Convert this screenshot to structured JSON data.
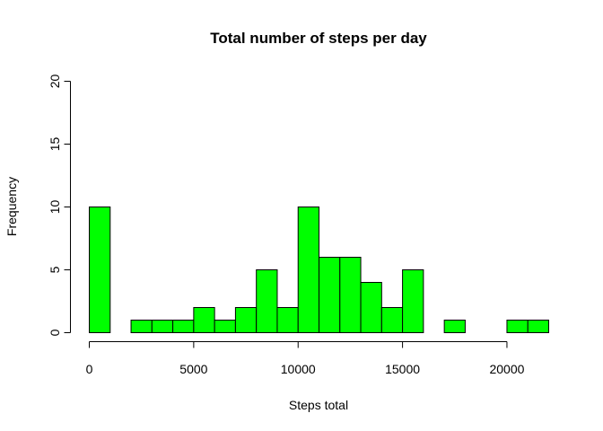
{
  "chart_data": {
    "type": "bar",
    "title": "Total number of steps per day",
    "xlabel": "Steps total",
    "ylabel": "Frequency",
    "bar_color": "#00ff00",
    "bar_border_color": "#000000",
    "bin_width": 1000,
    "bins": [
      {
        "start": 0,
        "end": 1000,
        "count": 10
      },
      {
        "start": 1000,
        "end": 2000,
        "count": 0
      },
      {
        "start": 2000,
        "end": 3000,
        "count": 1
      },
      {
        "start": 3000,
        "end": 4000,
        "count": 1
      },
      {
        "start": 4000,
        "end": 5000,
        "count": 1
      },
      {
        "start": 5000,
        "end": 6000,
        "count": 2
      },
      {
        "start": 6000,
        "end": 7000,
        "count": 1
      },
      {
        "start": 7000,
        "end": 8000,
        "count": 2
      },
      {
        "start": 8000,
        "end": 9000,
        "count": 5
      },
      {
        "start": 9000,
        "end": 10000,
        "count": 2
      },
      {
        "start": 10000,
        "end": 11000,
        "count": 10
      },
      {
        "start": 11000,
        "end": 12000,
        "count": 6
      },
      {
        "start": 12000,
        "end": 13000,
        "count": 6
      },
      {
        "start": 13000,
        "end": 14000,
        "count": 4
      },
      {
        "start": 14000,
        "end": 15000,
        "count": 2
      },
      {
        "start": 15000,
        "end": 16000,
        "count": 5
      },
      {
        "start": 16000,
        "end": 17000,
        "count": 0
      },
      {
        "start": 17000,
        "end": 18000,
        "count": 1
      },
      {
        "start": 18000,
        "end": 19000,
        "count": 0
      },
      {
        "start": 19000,
        "end": 20000,
        "count": 0
      },
      {
        "start": 20000,
        "end": 21000,
        "count": 1
      },
      {
        "start": 21000,
        "end": 22000,
        "count": 1
      }
    ],
    "xlim": [
      0,
      22000
    ],
    "ylim": [
      0,
      20
    ],
    "x_ticks": [
      0,
      5000,
      10000,
      15000,
      20000
    ],
    "y_ticks": [
      0,
      5,
      10,
      15,
      20
    ],
    "grid": false
  }
}
